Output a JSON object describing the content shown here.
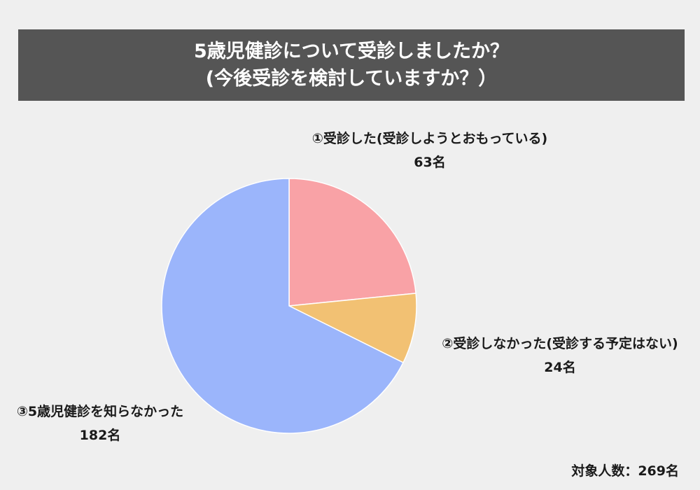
{
  "title": {
    "line1": "5歳児健診について受診しましたか？",
    "line2": "(今後受診を検討していますか？）"
  },
  "chart_data": {
    "type": "pie",
    "slices": [
      {
        "label": "①受診した(受診しようとおもっている)",
        "value_text": "63名",
        "value": 63,
        "color": "#f9a2a6"
      },
      {
        "label": "②受診しなかった(受診する予定はない)",
        "value_text": "24名",
        "value": 24,
        "color": "#f2c173"
      },
      {
        "label": "③5歳児健診を知らなかった",
        "value_text": "182名",
        "value": 182,
        "color": "#9bb5fb"
      }
    ],
    "total_text": "対象人数：269名",
    "total": 269
  }
}
